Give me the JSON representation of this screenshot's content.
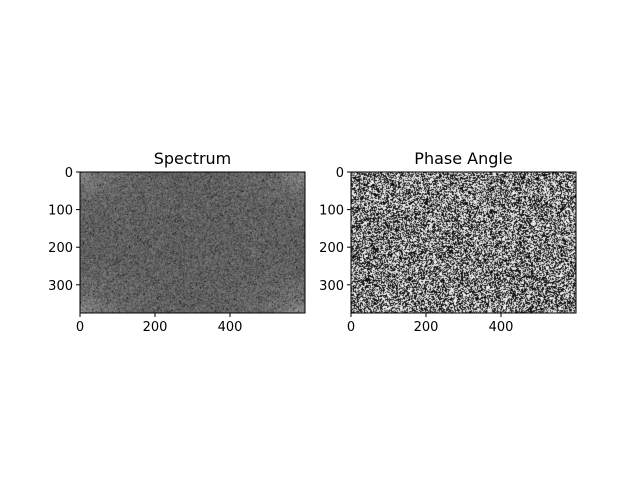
{
  "chart_data": [
    {
      "type": "heatmap",
      "title": "Spectrum",
      "xlabel": "",
      "ylabel": "",
      "xlim": [
        0,
        600
      ],
      "ylim": [
        375,
        0
      ],
      "x_ticks": [
        "0",
        "200",
        "400"
      ],
      "y_ticks": [
        "0",
        "100",
        "200",
        "300"
      ],
      "x_tick_values": [
        0,
        200,
        400
      ],
      "y_tick_values": [
        0,
        100,
        200,
        300
      ],
      "colormap": "gray",
      "grid": false
    },
    {
      "type": "heatmap",
      "title": "Phase Angle",
      "xlabel": "",
      "ylabel": "",
      "xlim": [
        0,
        600
      ],
      "ylim": [
        375,
        0
      ],
      "x_ticks": [
        "0",
        "200",
        "400"
      ],
      "y_ticks": [
        "0",
        "100",
        "200",
        "300"
      ],
      "x_tick_values": [
        0,
        200,
        400
      ],
      "y_tick_values": [
        0,
        100,
        200,
        300
      ],
      "colormap": "gray",
      "grid": false
    }
  ]
}
